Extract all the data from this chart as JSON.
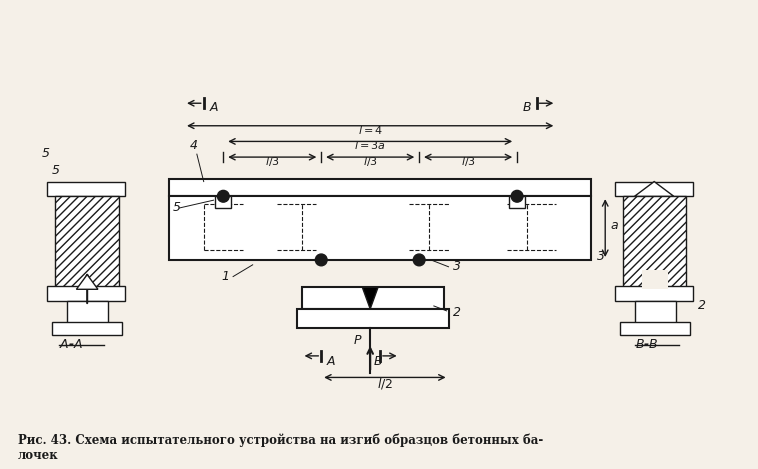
{
  "bg_color": "#f5f0e8",
  "line_color": "#1a1a1a",
  "hatch_color": "#1a1a1a",
  "title": "Рис. 43. Схема испытательного устройства на изгиб образцов бетонных ба-\nлочек",
  "fig_width": 7.58,
  "fig_height": 4.69
}
